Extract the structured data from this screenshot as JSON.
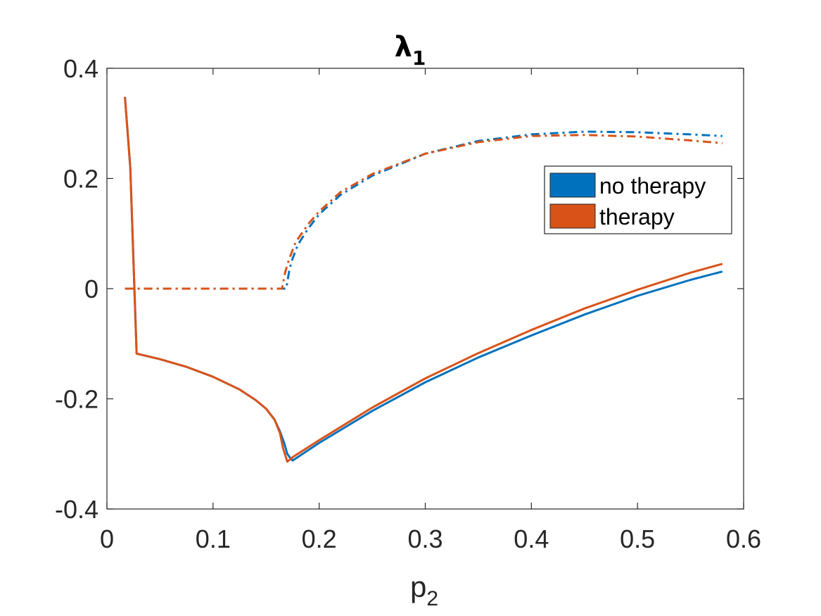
{
  "chart_data": {
    "type": "line",
    "title": "λ",
    "title_subscript": "1",
    "xlabel": "p",
    "xlabel_subscript": "2",
    "ylabel": "",
    "xlim": [
      0,
      0.6
    ],
    "ylim": [
      -0.4,
      0.4
    ],
    "xticks": [
      "0",
      "0.1",
      "0.2",
      "0.3",
      "0.4",
      "0.5",
      "0.6"
    ],
    "yticks": [
      "-0.4",
      "-0.2",
      "0",
      "0.2",
      "0.4"
    ],
    "grid": false,
    "legend_position": "top-right",
    "legend": [
      {
        "name": "no therapy",
        "color": "#0072BD"
      },
      {
        "name": "therapy",
        "color": "#D95319"
      }
    ],
    "series": [
      {
        "name": "no therapy",
        "color": "#0072BD",
        "style": "solid",
        "x": [
          0.017,
          0.022,
          0.028,
          0.05,
          0.075,
          0.1,
          0.125,
          0.14,
          0.15,
          0.158,
          0.163,
          0.167,
          0.17,
          0.173,
          0.175,
          0.2,
          0.25,
          0.3,
          0.35,
          0.4,
          0.45,
          0.5,
          0.55,
          0.58
        ],
        "y": [
          0.348,
          0.22,
          -0.118,
          -0.128,
          -0.142,
          -0.16,
          -0.183,
          -0.202,
          -0.218,
          -0.238,
          -0.259,
          -0.28,
          -0.3,
          -0.308,
          -0.312,
          -0.28,
          -0.222,
          -0.17,
          -0.125,
          -0.085,
          -0.047,
          -0.013,
          0.016,
          0.031
        ]
      },
      {
        "name": "therapy",
        "color": "#D95319",
        "style": "solid",
        "x": [
          0.017,
          0.022,
          0.028,
          0.05,
          0.075,
          0.1,
          0.125,
          0.14,
          0.15,
          0.158,
          0.163,
          0.166,
          0.17,
          0.175,
          0.2,
          0.25,
          0.3,
          0.35,
          0.4,
          0.45,
          0.5,
          0.55,
          0.58
        ],
        "y": [
          0.348,
          0.22,
          -0.118,
          -0.128,
          -0.142,
          -0.16,
          -0.183,
          -0.202,
          -0.218,
          -0.238,
          -0.262,
          -0.29,
          -0.314,
          -0.306,
          -0.275,
          -0.216,
          -0.163,
          -0.117,
          -0.075,
          -0.036,
          -0.002,
          0.029,
          0.045
        ]
      },
      {
        "name": "",
        "color": "#0072BD",
        "style": "dashdot",
        "x": [
          0.017,
          0.05,
          0.1,
          0.15,
          0.169,
          0.172,
          0.175,
          0.18,
          0.19,
          0.2,
          0.22,
          0.25,
          0.3,
          0.35,
          0.4,
          0.45,
          0.5,
          0.55,
          0.58
        ],
        "y": [
          0,
          0,
          0,
          0,
          0,
          0.035,
          0.055,
          0.08,
          0.11,
          0.135,
          0.17,
          0.205,
          0.245,
          0.268,
          0.28,
          0.285,
          0.284,
          0.28,
          0.277
        ]
      },
      {
        "name": "",
        "color": "#D95319",
        "style": "dashdot",
        "x": [
          0.017,
          0.05,
          0.1,
          0.15,
          0.165,
          0.168,
          0.172,
          0.178,
          0.19,
          0.2,
          0.22,
          0.25,
          0.3,
          0.35,
          0.4,
          0.45,
          0.5,
          0.55,
          0.58
        ],
        "y": [
          0,
          0,
          0,
          0,
          0,
          0.03,
          0.055,
          0.085,
          0.118,
          0.14,
          0.175,
          0.208,
          0.245,
          0.266,
          0.277,
          0.279,
          0.276,
          0.269,
          0.264
        ]
      }
    ]
  }
}
